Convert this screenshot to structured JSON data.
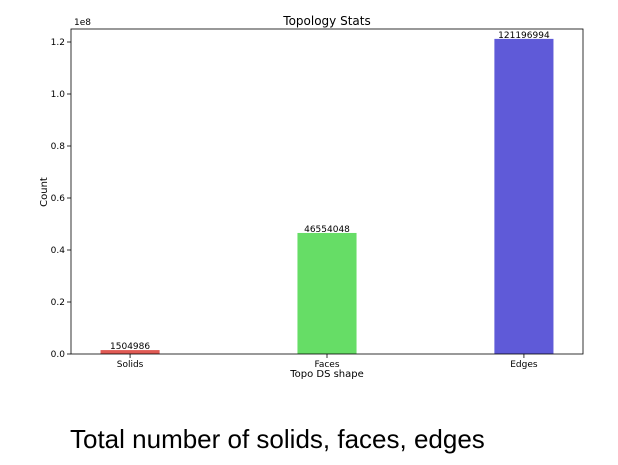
{
  "chart_data": {
    "type": "bar",
    "title": "Topology Stats",
    "xlabel": "Topo DS shape",
    "ylabel": "Count",
    "scale_label": "1e8",
    "categories": [
      "Solids",
      "Faces",
      "Edges"
    ],
    "values": [
      1504986,
      46554048,
      121196994
    ],
    "data_labels": [
      "1504986",
      "46554048",
      "121196994"
    ],
    "colors": [
      "#e05a54",
      "#66dd66",
      "#5f5ad8"
    ],
    "ylim": [
      0,
      125000000
    ],
    "yticks": [
      0,
      20000000,
      40000000,
      60000000,
      80000000,
      100000000,
      120000000
    ],
    "ytick_labels": [
      "0.0",
      "0.2",
      "0.4",
      "0.6",
      "0.8",
      "1.0",
      "1.2"
    ],
    "grid": false,
    "legend": "none"
  },
  "caption": "Total number of solids, faces, edges"
}
